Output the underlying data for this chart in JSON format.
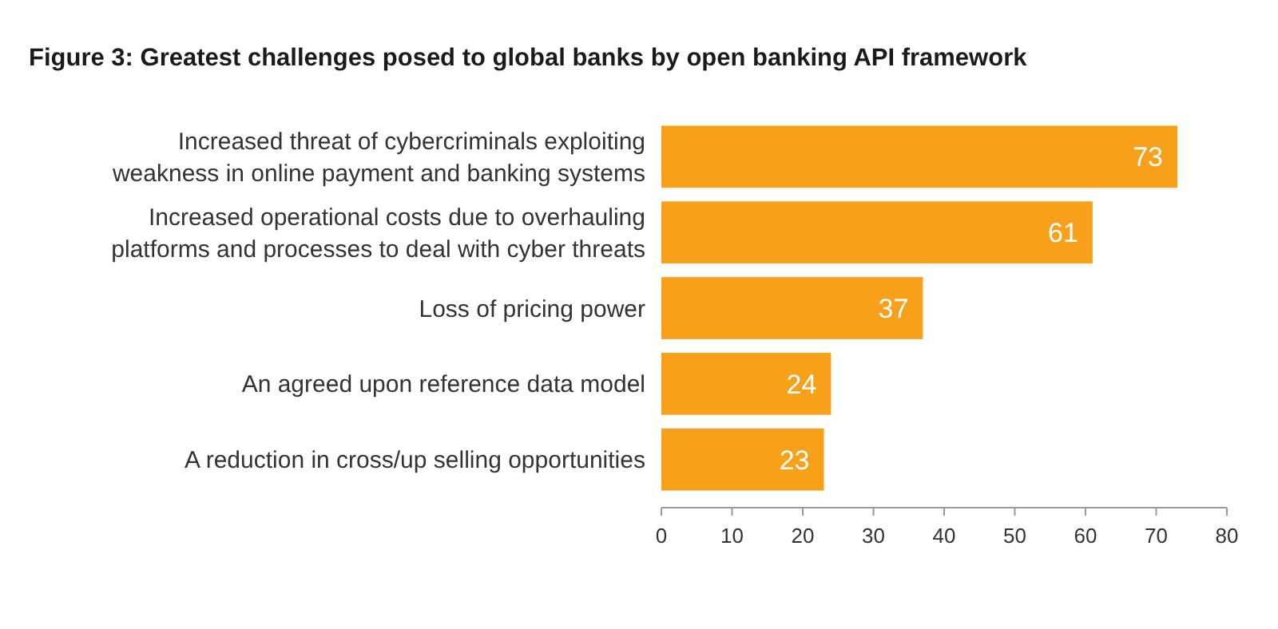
{
  "chart_data": {
    "type": "bar",
    "orientation": "horizontal",
    "title": "Figure 3: Greatest challenges posed to global banks by open banking API framework",
    "categories": [
      "Increased threat of cybercriminals exploiting weakness in online payment and banking systems",
      "Increased operational costs due to overhauling platforms and processes to deal with cyber threats",
      "Loss of pricing power",
      "An agreed upon reference data model",
      "A reduction in cross/up selling opportunities"
    ],
    "values": [
      73,
      61,
      37,
      24,
      23
    ],
    "color": "#f7a11a",
    "xlim": [
      0,
      80
    ],
    "xticks": [
      0,
      10,
      20,
      30,
      40,
      50,
      60,
      70,
      80
    ],
    "data_labels": true
  }
}
